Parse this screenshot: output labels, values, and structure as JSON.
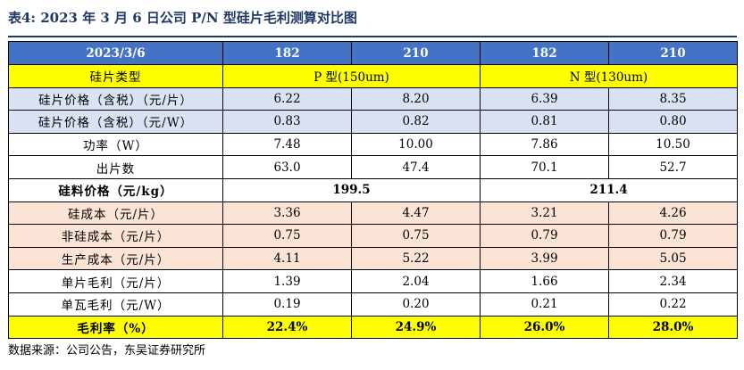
{
  "caption": "表4:  2023 年 3 月 6 日公司 P/N 型硅片毛利测算对比图",
  "header": [
    "2023/3/6",
    "182",
    "210",
    "182",
    "210"
  ],
  "type_row": {
    "label": "硅片类型",
    "p_type": "P 型(150um)",
    "n_type": "N 型(130um)"
  },
  "rows_top": [
    {
      "label": "硅片价格（含税）（元/片）",
      "values": [
        "6.22",
        "8.20",
        "6.39",
        "8.35"
      ]
    },
    {
      "label": "硅片价格（含税）（元/W）",
      "values": [
        "0.83",
        "0.82",
        "0.81",
        "0.80"
      ]
    },
    {
      "label": "功率（W）",
      "values": [
        "7.48",
        "10.00",
        "7.86",
        "10.50"
      ]
    },
    {
      "label": "出片数",
      "values": [
        "63.0",
        "47.4",
        "70.1",
        "52.7"
      ]
    }
  ],
  "silicon_price": {
    "label": "硅料价格（元/kg）",
    "p_value": "199.5",
    "n_value": "211.4"
  },
  "rows_cost": [
    {
      "label": "硅成本（元/片）",
      "values": [
        "3.36",
        "4.47",
        "3.21",
        "4.26"
      ]
    },
    {
      "label": "非硅成本（元/片）",
      "values": [
        "0.75",
        "0.75",
        "0.79",
        "0.79"
      ]
    },
    {
      "label": "生产成本（元/片）",
      "values": [
        "4.11",
        "5.22",
        "3.99",
        "5.05"
      ]
    },
    {
      "label": "单片毛利（元/片）",
      "values": [
        "1.39",
        "2.04",
        "1.66",
        "2.34"
      ]
    },
    {
      "label": "单瓦毛利（元/W）",
      "values": [
        "0.19",
        "0.20",
        "0.21",
        "0.22"
      ]
    }
  ],
  "margin": {
    "label": "毛利率（%）",
    "values": [
      "22.4%",
      "24.9%",
      "26.0%",
      "28.0%"
    ]
  },
  "source": "数据来源：公司公告，东吴证券研究所"
}
